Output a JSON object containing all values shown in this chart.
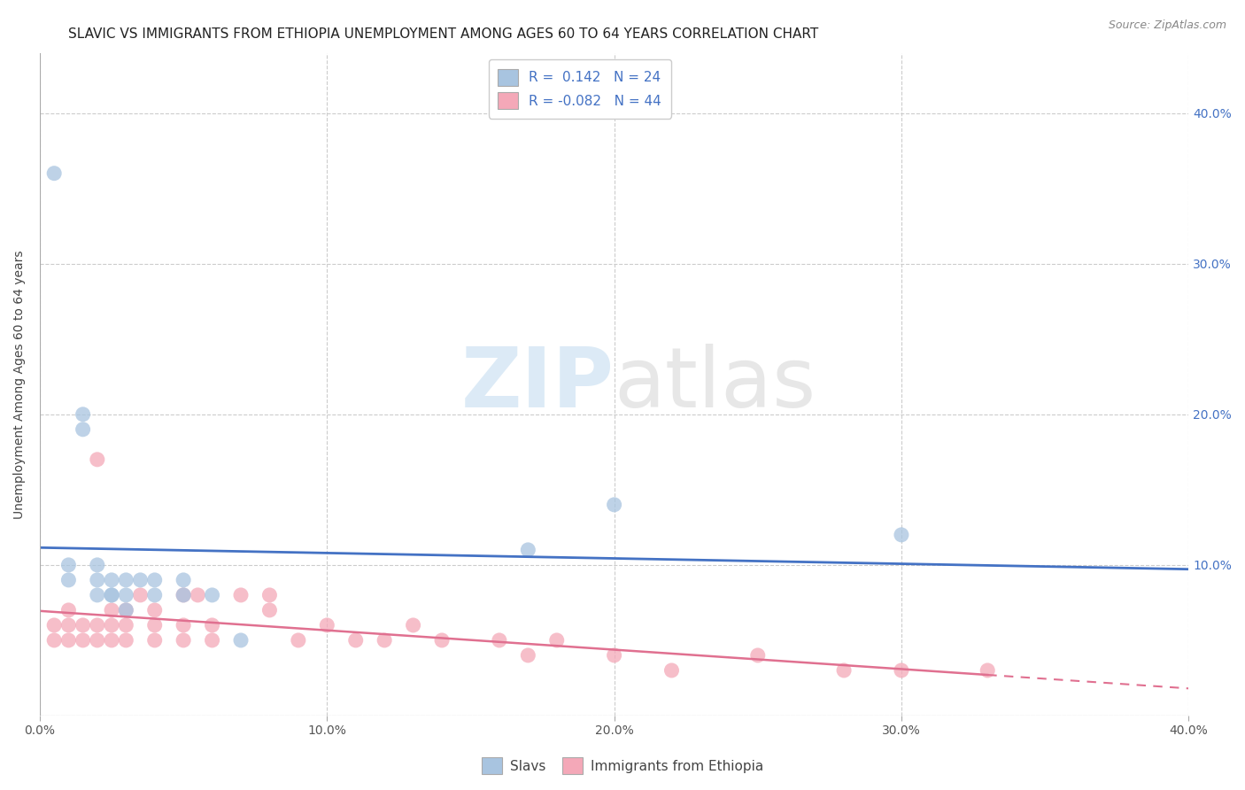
{
  "title": "SLAVIC VS IMMIGRANTS FROM ETHIOPIA UNEMPLOYMENT AMONG AGES 60 TO 64 YEARS CORRELATION CHART",
  "source": "Source: ZipAtlas.com",
  "ylabel": "Unemployment Among Ages 60 to 64 years",
  "xlim": [
    0.0,
    0.4
  ],
  "ylim": [
    0.0,
    0.44
  ],
  "xticks": [
    0.0,
    0.1,
    0.2,
    0.3,
    0.4
  ],
  "yticks": [
    0.0,
    0.1,
    0.2,
    0.3,
    0.4
  ],
  "slavs_R": 0.142,
  "slavs_N": 24,
  "ethiopia_R": -0.082,
  "ethiopia_N": 44,
  "slavs_color": "#a8c4e0",
  "ethiopia_color": "#f4a8b8",
  "trend_slavs_color": "#4472c4",
  "trend_ethiopia_color": "#e07090",
  "background_color": "#ffffff",
  "slavs_x": [
    0.005,
    0.01,
    0.01,
    0.015,
    0.015,
    0.02,
    0.02,
    0.02,
    0.025,
    0.025,
    0.025,
    0.03,
    0.03,
    0.03,
    0.035,
    0.04,
    0.04,
    0.05,
    0.05,
    0.06,
    0.07,
    0.17,
    0.2,
    0.3
  ],
  "slavs_y": [
    0.36,
    0.09,
    0.1,
    0.19,
    0.2,
    0.08,
    0.09,
    0.1,
    0.08,
    0.08,
    0.09,
    0.07,
    0.08,
    0.09,
    0.09,
    0.08,
    0.09,
    0.08,
    0.09,
    0.08,
    0.05,
    0.11,
    0.14,
    0.12
  ],
  "ethiopia_x": [
    0.005,
    0.005,
    0.01,
    0.01,
    0.01,
    0.015,
    0.015,
    0.02,
    0.02,
    0.02,
    0.025,
    0.025,
    0.025,
    0.03,
    0.03,
    0.03,
    0.035,
    0.04,
    0.04,
    0.04,
    0.05,
    0.05,
    0.05,
    0.055,
    0.06,
    0.06,
    0.07,
    0.08,
    0.08,
    0.09,
    0.1,
    0.11,
    0.12,
    0.13,
    0.14,
    0.16,
    0.17,
    0.18,
    0.2,
    0.22,
    0.25,
    0.28,
    0.3,
    0.33
  ],
  "ethiopia_y": [
    0.05,
    0.06,
    0.05,
    0.06,
    0.07,
    0.05,
    0.06,
    0.05,
    0.06,
    0.17,
    0.05,
    0.06,
    0.07,
    0.05,
    0.06,
    0.07,
    0.08,
    0.05,
    0.06,
    0.07,
    0.05,
    0.06,
    0.08,
    0.08,
    0.05,
    0.06,
    0.08,
    0.07,
    0.08,
    0.05,
    0.06,
    0.05,
    0.05,
    0.06,
    0.05,
    0.05,
    0.04,
    0.05,
    0.04,
    0.03,
    0.04,
    0.03,
    0.03,
    0.03
  ],
  "legend_x_slavs": "Slavs",
  "legend_x_ethiopia": "Immigrants from Ethiopia",
  "title_fontsize": 11,
  "axis_fontsize": 10,
  "legend_fontsize": 11,
  "source_fontsize": 9
}
